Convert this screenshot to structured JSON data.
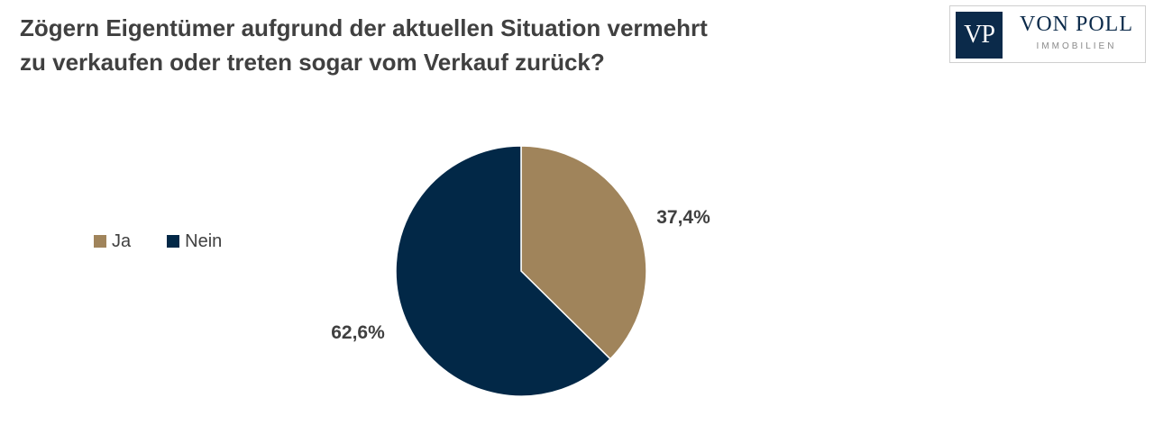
{
  "title": {
    "line1": "Zögern Eigentümer aufgrund der aktuellen Situation vermehrt",
    "line2": "zu verkaufen oder treten sogar vom Verkauf zurück?"
  },
  "logo": {
    "mark": "VP",
    "name": "VON POLL",
    "subtitle": "IMMOBILIEN"
  },
  "colors": {
    "ja": "#a0845b",
    "nein": "#022847",
    "text": "#404040"
  },
  "chart_data": {
    "type": "pie",
    "categories": [
      "Ja",
      "Nein"
    ],
    "values": [
      37.4,
      62.6
    ],
    "labels": [
      "37,4%",
      "62,6%"
    ],
    "legend_position": "left"
  }
}
